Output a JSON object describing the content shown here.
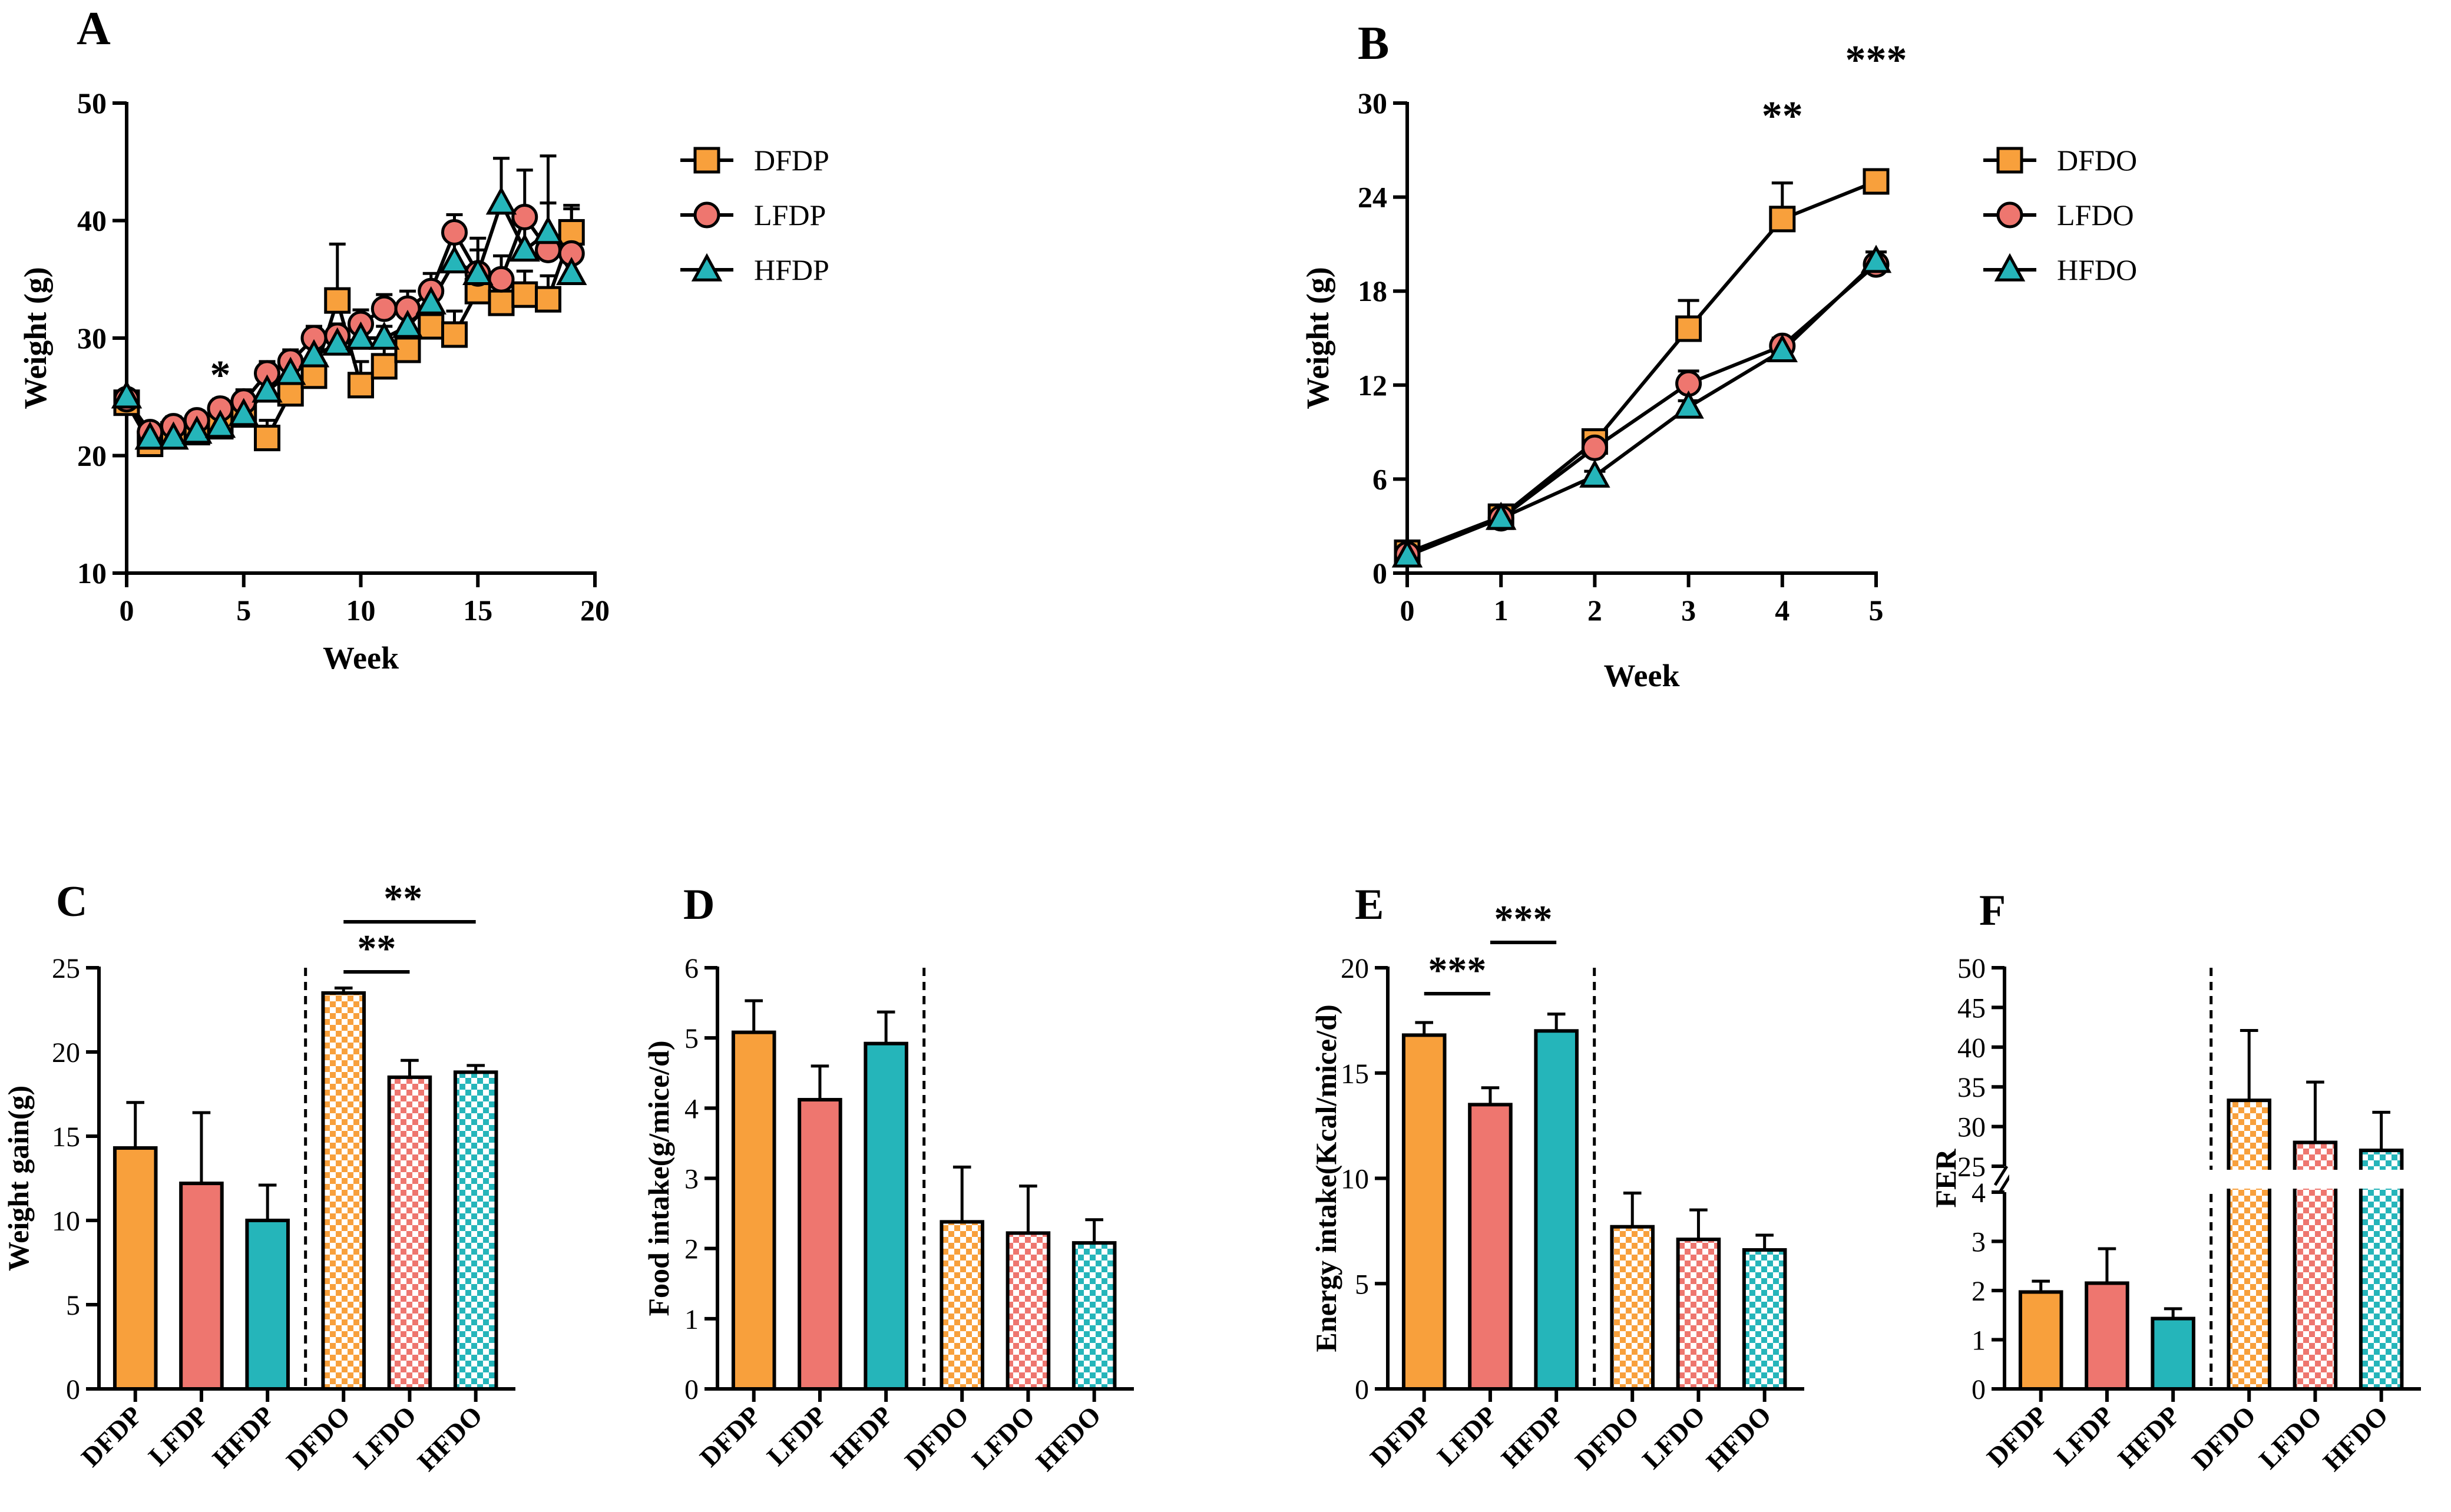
{
  "colors": {
    "orange": "#F8A03C",
    "red": "#EE766F",
    "teal": "#25B5BA",
    "axis": "#000000"
  },
  "chart_data": [
    {
      "panel": "A",
      "type": "line",
      "xlabel": "Week",
      "ylabel": "Weight (g)",
      "xlim": [
        0,
        20
      ],
      "ylim": [
        10,
        50
      ],
      "xticks": [
        0,
        5,
        10,
        15,
        20
      ],
      "yticks": [
        10,
        20,
        30,
        40,
        50
      ],
      "legend": "right",
      "x": [
        0,
        1,
        2,
        3,
        4,
        5,
        6,
        7,
        8,
        9,
        10,
        11,
        12,
        13,
        14,
        15,
        16,
        17,
        18,
        19
      ],
      "series": [
        {
          "name": "DFDP",
          "marker": "square",
          "color": "#F8A03C",
          "values": [
            24.5,
            21.0,
            21.8,
            22.0,
            22.5,
            23.5,
            21.5,
            25.3,
            26.8,
            33.2,
            26.0,
            27.6,
            29.0,
            31.0,
            30.3,
            34.0,
            33.0,
            33.7,
            33.3,
            39.0
          ],
          "errors": [
            0.5,
            0.5,
            1.0,
            1.0,
            1.0,
            1.0,
            1.5,
            1.5,
            1.5,
            4.8,
            2.0,
            2.0,
            2.0,
            2.0,
            2.0,
            2.0,
            2.0,
            2.0,
            2.0,
            2.3
          ]
        },
        {
          "name": "LFDP",
          "marker": "circle",
          "color": "#EE766F",
          "values": [
            24.8,
            22.0,
            22.5,
            23.0,
            24.0,
            24.6,
            27.0,
            28.0,
            30.0,
            30.2,
            31.2,
            32.5,
            32.5,
            34.0,
            39.0,
            35.5,
            35.0,
            40.3,
            37.5,
            37.2
          ],
          "errors": [
            0.5,
            0.5,
            0.8,
            0.8,
            0.8,
            1.0,
            1.0,
            1.0,
            1.0,
            1.0,
            1.2,
            1.2,
            1.5,
            1.5,
            1.5,
            2.0,
            2.0,
            4.0,
            4.0,
            3.8
          ]
        },
        {
          "name": "HFDP",
          "marker": "triangle",
          "color": "#25B5BA",
          "values": [
            25.0,
            21.5,
            21.5,
            22.0,
            22.5,
            23.5,
            25.5,
            27.0,
            28.5,
            29.5,
            30.0,
            30.0,
            31.0,
            33.0,
            36.5,
            35.5,
            41.5,
            37.5,
            39.0,
            35.5
          ],
          "errors": [
            0.5,
            0.5,
            0.5,
            0.5,
            0.5,
            0.5,
            0.8,
            0.8,
            1.0,
            1.0,
            1.0,
            1.0,
            1.2,
            1.5,
            2.0,
            3.0,
            3.8,
            3.5,
            6.5,
            3.0
          ]
        }
      ],
      "annotations": [
        {
          "text": "*",
          "x": 4
        }
      ]
    },
    {
      "panel": "B",
      "type": "line",
      "xlabel": "Week",
      "ylabel": "Weight (g)",
      "xlim": [
        0,
        5
      ],
      "ylim": [
        0,
        30
      ],
      "xticks": [
        0,
        1,
        2,
        3,
        4,
        5
      ],
      "yticks": [
        0,
        6,
        12,
        18,
        24,
        30
      ],
      "legend": "right",
      "x": [
        0,
        1,
        2,
        3,
        4,
        5
      ],
      "series": [
        {
          "name": "DFDO",
          "marker": "square",
          "color": "#F8A03C",
          "values": [
            1.3,
            3.6,
            8.4,
            15.6,
            22.6,
            25.0
          ],
          "errors": [
            0.2,
            0.3,
            0.4,
            1.8,
            2.3,
            0.3
          ]
        },
        {
          "name": "LFDO",
          "marker": "circle",
          "color": "#EE766F",
          "values": [
            1.2,
            3.5,
            8.0,
            12.1,
            14.5,
            19.7
          ],
          "errors": [
            0.2,
            0.3,
            0.3,
            0.8,
            0.5,
            0.4
          ]
        },
        {
          "name": "HFDO",
          "marker": "triangle",
          "color": "#25B5BA",
          "values": [
            1.1,
            3.5,
            6.2,
            10.6,
            14.2,
            19.9
          ],
          "errors": [
            0.2,
            0.3,
            0.3,
            0.4,
            0.5,
            0.6
          ]
        }
      ],
      "annotations": [
        {
          "text": "**",
          "x": 4
        },
        {
          "text": "***",
          "x": 5
        }
      ]
    },
    {
      "panel": "C",
      "type": "bar",
      "ylabel": "Weight gain(g)",
      "ylim": [
        0,
        25
      ],
      "yticks": [
        0,
        5,
        10,
        15,
        20,
        25
      ],
      "categories": [
        "DFDP",
        "LFDP",
        "HFDP",
        "DFDO",
        "LFDO",
        "HFDO"
      ],
      "values": [
        14.3,
        12.2,
        10.0,
        23.5,
        18.5,
        18.8
      ],
      "errors": [
        2.7,
        4.2,
        2.1,
        0.3,
        1.0,
        0.4
      ],
      "significance": [
        {
          "from": 3,
          "to": 4,
          "text": "**"
        },
        {
          "from": 3,
          "to": 5,
          "text": "**"
        }
      ]
    },
    {
      "panel": "D",
      "type": "bar",
      "ylabel": "Food intake(g/mice/d)",
      "ylim": [
        0,
        6
      ],
      "yticks": [
        0,
        1,
        2,
        3,
        4,
        5,
        6
      ],
      "categories": [
        "DFDP",
        "LFDP",
        "HFDP",
        "DFDO",
        "LFDO",
        "HFDO"
      ],
      "values": [
        5.08,
        4.12,
        4.92,
        2.38,
        2.22,
        2.08
      ],
      "errors": [
        0.45,
        0.48,
        0.45,
        0.78,
        0.67,
        0.33
      ],
      "significance": []
    },
    {
      "panel": "E",
      "type": "bar",
      "ylabel": "Energy intake(Kcal/mice/d)",
      "ylim": [
        0,
        20
      ],
      "yticks": [
        0,
        5,
        10,
        15,
        20
      ],
      "categories": [
        "DFDP",
        "LFDP",
        "HFDP",
        "DFDO",
        "LFDO",
        "HFDO"
      ],
      "values": [
        16.8,
        13.5,
        17.0,
        7.7,
        7.1,
        6.6
      ],
      "errors": [
        0.6,
        0.8,
        0.8,
        1.6,
        1.4,
        0.7
      ],
      "significance": [
        {
          "from": 0,
          "to": 1,
          "text": "***"
        },
        {
          "from": 1,
          "to": 2,
          "text": "***"
        }
      ]
    },
    {
      "panel": "F",
      "type": "bar",
      "ylabel": "FER",
      "broken_axis": true,
      "yticks_lower": [
        0,
        1,
        2,
        3,
        4
      ],
      "yticks_upper": [
        25,
        30,
        35,
        40,
        45,
        50
      ],
      "categories": [
        "DFDP",
        "LFDP",
        "HFDP",
        "DFDO",
        "LFDO",
        "HFDO"
      ],
      "values": [
        1.97,
        2.15,
        1.43,
        33.3,
        28.0,
        27.0
      ],
      "errors": [
        0.22,
        0.7,
        0.2,
        8.8,
        7.6,
        4.8
      ],
      "significance": []
    }
  ]
}
